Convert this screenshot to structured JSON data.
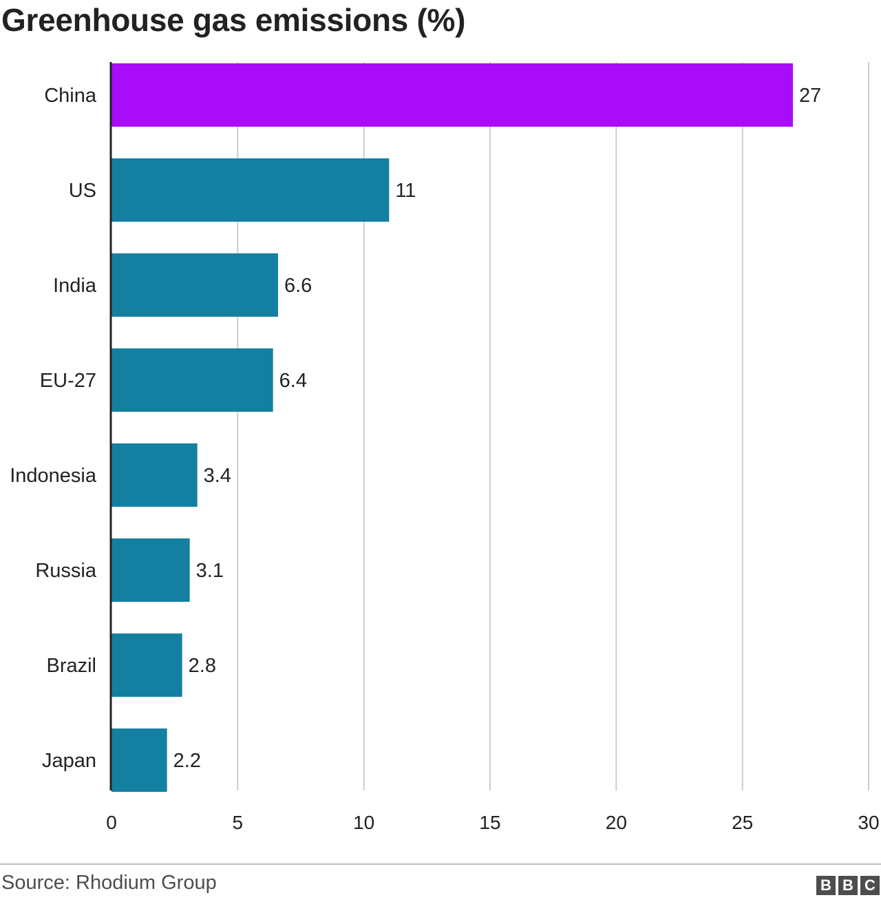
{
  "chart_data": {
    "type": "bar",
    "orientation": "horizontal",
    "title": "Greenhouse gas emissions (%)",
    "categories": [
      "China",
      "US",
      "India",
      "EU-27",
      "Indonesia",
      "Russia",
      "Brazil",
      "Japan"
    ],
    "values": [
      27,
      11,
      6.6,
      6.4,
      3.4,
      3.1,
      2.8,
      2.2
    ],
    "value_labels": [
      "27",
      "11",
      "6.6",
      "6.4",
      "3.4",
      "3.1",
      "2.8",
      "2.2"
    ],
    "highlight_index": 0,
    "colors": {
      "highlight": "#a80cf8",
      "default": "#1380a1",
      "grid": "#cccccc",
      "axis": "#222222"
    },
    "xlim": [
      0,
      30
    ],
    "xticks": [
      0,
      5,
      10,
      15,
      20,
      25,
      30
    ],
    "grid": true,
    "legend": "none"
  },
  "footer": {
    "source": "Source: Rhodium Group",
    "logo": [
      "B",
      "B",
      "C"
    ]
  }
}
